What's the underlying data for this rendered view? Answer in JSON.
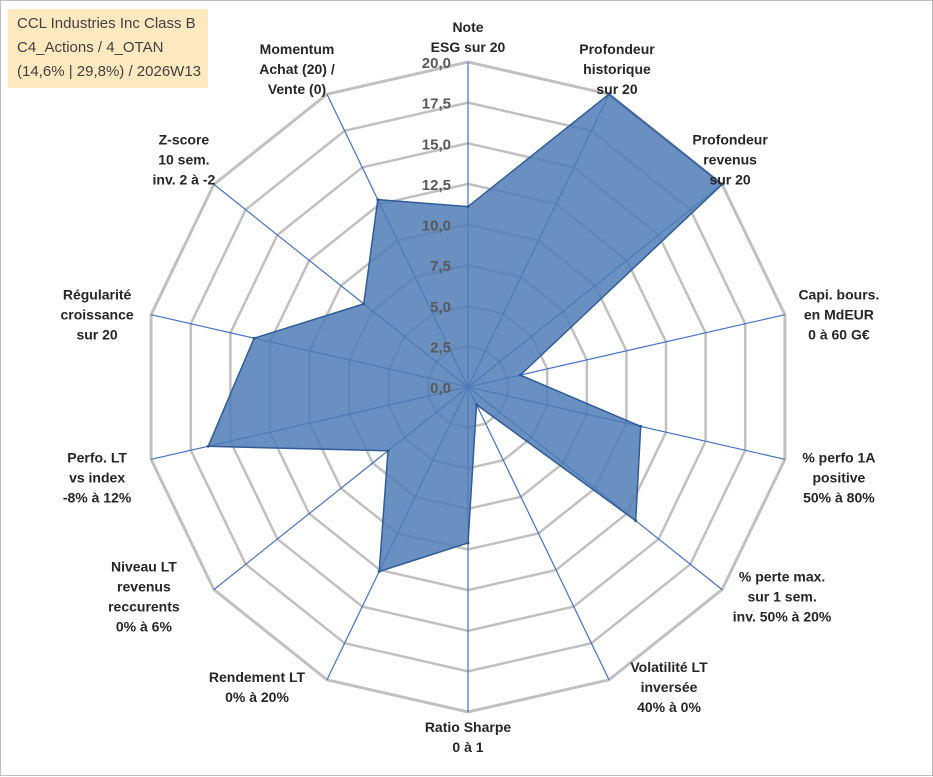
{
  "header": {
    "line1": "CCL Industries Inc Class B",
    "line2": "C4_Actions / 4_OTAN",
    "line3": "(14,6% | 29,8%) / 2026W13"
  },
  "colors": {
    "fill": "#4f7db5",
    "stroke": "#2f5c99",
    "axis": "#4472c4",
    "grid": "#c0c0c0",
    "title_bg": "#fde9bf"
  },
  "chart_data": {
    "type": "radar",
    "scale": {
      "min": 0,
      "max": 20,
      "step": 2.5
    },
    "tick_labels": [
      "0,0",
      "2,5",
      "5,0",
      "7,5",
      "10,0",
      "12,5",
      "15,0",
      "17,5",
      "20,0"
    ],
    "categories": [
      [
        "Note",
        "ESG sur 20"
      ],
      [
        "Profondeur",
        "historique",
        "sur 20"
      ],
      [
        "Profondeur",
        "revenus",
        "sur 20"
      ],
      [
        "Capi. bours.",
        "en MdEUR",
        "0 à 60 G€"
      ],
      [
        "% perfo 1A",
        "positive",
        "50% à 80%"
      ],
      [
        "% perte max.",
        "sur 1 sem.",
        "inv. 50% à 20%"
      ],
      [
        "Volatilité LT",
        "inversée",
        "40% à 0%"
      ],
      [
        "Ratio Sharpe",
        "0 à 1"
      ],
      [
        "Rendement LT",
        "0% à 20%"
      ],
      [
        "Niveau LT",
        "revenus",
        "reccurents",
        "0% à 6%"
      ],
      [
        "Perfo. LT",
        "vs index",
        "-8% à 12%"
      ],
      [
        "Régularité",
        "croissance",
        "sur 20"
      ],
      [
        "Z-score",
        "10 sem.",
        "inv. 2 à -2"
      ],
      [
        "Momentum",
        "Achat (20) /",
        "Vente (0)"
      ]
    ],
    "series": [
      {
        "name": "CCL Industries Inc Class B",
        "values": [
          11.1,
          20.0,
          20.0,
          3.3,
          10.9,
          13.2,
          1.2,
          9.6,
          12.6,
          6.3,
          16.4,
          13.5,
          8.2,
          12.8
        ]
      }
    ]
  }
}
